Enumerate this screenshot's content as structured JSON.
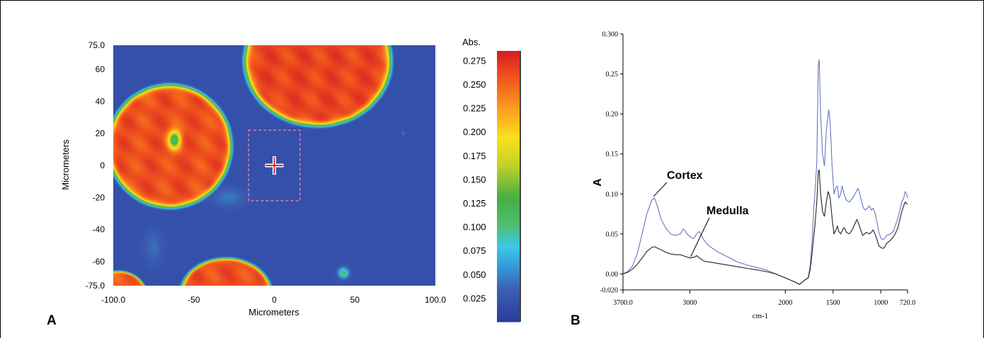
{
  "panels": {
    "a": {
      "letter": "A"
    },
    "b": {
      "letter": "B"
    }
  },
  "chart_data": [
    {
      "type": "heatmap",
      "panel": "A",
      "xlabel": "Micrometers",
      "ylabel": "Micrometers",
      "xlim": [
        -100,
        100
      ],
      "ylim": [
        -75,
        75
      ],
      "x_tick_labels": [
        "-100.0",
        "-50",
        "0",
        "50",
        "100.0"
      ],
      "x_tick_values": [
        -100,
        -50,
        0,
        50,
        100
      ],
      "y_tick_labels": [
        "75.0",
        "60",
        "40",
        "20",
        "0",
        "-20",
        "-40",
        "-60",
        "-75.0"
      ],
      "y_tick_values": [
        75,
        60,
        40,
        20,
        0,
        -20,
        -40,
        -60,
        -75
      ],
      "colorbar": {
        "title": "Abs.",
        "range": [
          0.0,
          0.285
        ],
        "tick_labels": [
          "0.275",
          "0.250",
          "0.225",
          "0.200",
          "0.175",
          "0.150",
          "0.125",
          "0.100",
          "0.075",
          "0.050",
          "0.025"
        ],
        "tick_values": [
          0.275,
          0.25,
          0.225,
          0.2,
          0.175,
          0.15,
          0.125,
          0.1,
          0.075,
          0.05,
          0.025
        ]
      },
      "background_value": 0.02,
      "regions": [
        {
          "shape": "fiber",
          "center": [
            -65,
            12
          ],
          "radius": [
            38,
            38
          ],
          "peak": 0.26
        },
        {
          "shape": "fiber",
          "center": [
            27,
            65
          ],
          "radius": [
            45,
            40
          ],
          "peak": 0.265
        },
        {
          "shape": "fiber",
          "center": [
            -30,
            -80
          ],
          "radius": [
            28,
            22
          ],
          "peak": 0.26
        },
        {
          "shape": "fiber",
          "center": [
            -97,
            -82
          ],
          "radius": [
            18,
            16
          ],
          "peak": 0.255
        },
        {
          "shape": "medulla",
          "center": [
            -62,
            16
          ],
          "radius": [
            4,
            6
          ],
          "value": 0.1
        },
        {
          "shape": "spot",
          "center": [
            43,
            -67
          ],
          "radius": [
            4,
            4
          ],
          "value": 0.11
        },
        {
          "shape": "spot",
          "center": [
            80,
            20
          ],
          "radius": [
            1.5,
            1.5
          ],
          "value": 0.045
        },
        {
          "shape": "haze",
          "center": [
            -28,
            -20
          ],
          "radius": [
            12,
            7
          ],
          "value": 0.045
        },
        {
          "shape": "haze",
          "center": [
            -75,
            -51
          ],
          "radius": [
            7,
            13
          ],
          "value": 0.04
        }
      ],
      "selection_box": {
        "x": [
          -16,
          16
        ],
        "y": [
          -22,
          22
        ]
      },
      "crosshair": [
        0,
        0
      ],
      "colors": {
        "background": "#3c5fb4",
        "box": "#e37aa1",
        "cross_red": "#d5283c",
        "cross_white": "#ffffff"
      }
    },
    {
      "type": "line",
      "panel": "B",
      "xlabel": "cm-1",
      "ylabel": "A",
      "xlim": [
        3700,
        720
      ],
      "ylim": [
        -0.02,
        0.3
      ],
      "x_tick_labels": [
        "3700.0",
        "3000",
        "2000",
        "1500",
        "1000",
        "720.0"
      ],
      "x_tick_values": [
        3700,
        3000,
        2000,
        1500,
        1000,
        720
      ],
      "y_tick_labels": [
        "0.300",
        "0.25",
        "0.20",
        "0.15",
        "0.10",
        "0.05",
        "0.00",
        "-0.020"
      ],
      "y_tick_values": [
        0.3,
        0.25,
        0.2,
        0.15,
        0.1,
        0.05,
        0.0,
        -0.02
      ],
      "series": [
        {
          "name": "Cortex",
          "color": "#6675c5",
          "points": [
            [
              3700,
              0.0
            ],
            [
              3650,
              0.003
            ],
            [
              3600,
              0.01
            ],
            [
              3550,
              0.025
            ],
            [
              3500,
              0.05
            ],
            [
              3450,
              0.075
            ],
            [
              3400,
              0.092
            ],
            [
              3370,
              0.095
            ],
            [
              3340,
              0.085
            ],
            [
              3300,
              0.068
            ],
            [
              3250,
              0.057
            ],
            [
              3200,
              0.05
            ],
            [
              3150,
              0.048
            ],
            [
              3100,
              0.05
            ],
            [
              3070,
              0.056
            ],
            [
              3050,
              0.054
            ],
            [
              3030,
              0.05
            ],
            [
              3000,
              0.047
            ],
            [
              2980,
              0.045
            ],
            [
              2960,
              0.044
            ],
            [
              2930,
              0.05
            ],
            [
              2900,
              0.053
            ],
            [
              2870,
              0.046
            ],
            [
              2850,
              0.042
            ],
            [
              2800,
              0.035
            ],
            [
              2700,
              0.027
            ],
            [
              2600,
              0.021
            ],
            [
              2500,
              0.015
            ],
            [
              2400,
              0.011
            ],
            [
              2300,
              0.008
            ],
            [
              2200,
              0.005
            ],
            [
              2100,
              0.0
            ],
            [
              2000,
              -0.005
            ],
            [
              1900,
              -0.01
            ],
            [
              1850,
              -0.013
            ],
            [
              1800,
              -0.008
            ],
            [
              1760,
              -0.005
            ],
            [
              1740,
              0.01
            ],
            [
              1720,
              0.04
            ],
            [
              1700,
              0.085
            ],
            [
              1690,
              0.1
            ],
            [
              1670,
              0.14
            ],
            [
              1655,
              0.26
            ],
            [
              1645,
              0.268
            ],
            [
              1630,
              0.2
            ],
            [
              1610,
              0.15
            ],
            [
              1590,
              0.135
            ],
            [
              1570,
              0.18
            ],
            [
              1545,
              0.205
            ],
            [
              1530,
              0.19
            ],
            [
              1510,
              0.135
            ],
            [
              1490,
              0.1
            ],
            [
              1470,
              0.108
            ],
            [
              1455,
              0.11
            ],
            [
              1440,
              0.095
            ],
            [
              1420,
              0.1
            ],
            [
              1405,
              0.11
            ],
            [
              1385,
              0.1
            ],
            [
              1360,
              0.092
            ],
            [
              1330,
              0.09
            ],
            [
              1300,
              0.094
            ],
            [
              1270,
              0.1
            ],
            [
              1240,
              0.107
            ],
            [
              1220,
              0.1
            ],
            [
              1200,
              0.09
            ],
            [
              1180,
              0.082
            ],
            [
              1160,
              0.08
            ],
            [
              1140,
              0.082
            ],
            [
              1120,
              0.085
            ],
            [
              1100,
              0.08
            ],
            [
              1080,
              0.082
            ],
            [
              1060,
              0.076
            ],
            [
              1040,
              0.065
            ],
            [
              1020,
              0.052
            ],
            [
              1000,
              0.045
            ],
            [
              980,
              0.043
            ],
            [
              960,
              0.044
            ],
            [
              940,
              0.048
            ],
            [
              900,
              0.05
            ],
            [
              870,
              0.053
            ],
            [
              850,
              0.06
            ],
            [
              820,
              0.07
            ],
            [
              800,
              0.08
            ],
            [
              780,
              0.09
            ],
            [
              760,
              0.095
            ],
            [
              745,
              0.103
            ],
            [
              730,
              0.1
            ],
            [
              720,
              0.095
            ]
          ]
        },
        {
          "name": "Medulla",
          "color": "#222222",
          "points": [
            [
              3700,
              0.0
            ],
            [
              3650,
              0.002
            ],
            [
              3600,
              0.006
            ],
            [
              3550,
              0.012
            ],
            [
              3500,
              0.02
            ],
            [
              3450,
              0.028
            ],
            [
              3400,
              0.033
            ],
            [
              3370,
              0.034
            ],
            [
              3300,
              0.03
            ],
            [
              3250,
              0.027
            ],
            [
              3200,
              0.025
            ],
            [
              3150,
              0.024
            ],
            [
              3100,
              0.024
            ],
            [
              3050,
              0.022
            ],
            [
              3000,
              0.02
            ],
            [
              2950,
              0.021
            ],
            [
              2930,
              0.023
            ],
            [
              2900,
              0.02
            ],
            [
              2850,
              0.016
            ],
            [
              2800,
              0.015
            ],
            [
              2700,
              0.013
            ],
            [
              2600,
              0.011
            ],
            [
              2500,
              0.009
            ],
            [
              2400,
              0.007
            ],
            [
              2300,
              0.005
            ],
            [
              2200,
              0.003
            ],
            [
              2100,
              0.0
            ],
            [
              2000,
              -0.005
            ],
            [
              1900,
              -0.01
            ],
            [
              1850,
              -0.013
            ],
            [
              1800,
              -0.008
            ],
            [
              1760,
              -0.005
            ],
            [
              1740,
              0.005
            ],
            [
              1720,
              0.025
            ],
            [
              1700,
              0.05
            ],
            [
              1690,
              0.06
            ],
            [
              1670,
              0.09
            ],
            [
              1655,
              0.128
            ],
            [
              1645,
              0.13
            ],
            [
              1630,
              0.1
            ],
            [
              1610,
              0.078
            ],
            [
              1590,
              0.072
            ],
            [
              1570,
              0.09
            ],
            [
              1550,
              0.103
            ],
            [
              1530,
              0.095
            ],
            [
              1510,
              0.07
            ],
            [
              1490,
              0.05
            ],
            [
              1470,
              0.055
            ],
            [
              1455,
              0.06
            ],
            [
              1440,
              0.053
            ],
            [
              1420,
              0.05
            ],
            [
              1400,
              0.055
            ],
            [
              1385,
              0.058
            ],
            [
              1360,
              0.052
            ],
            [
              1330,
              0.05
            ],
            [
              1300,
              0.055
            ],
            [
              1270,
              0.063
            ],
            [
              1250,
              0.068
            ],
            [
              1230,
              0.062
            ],
            [
              1210,
              0.055
            ],
            [
              1190,
              0.048
            ],
            [
              1170,
              0.05
            ],
            [
              1150,
              0.052
            ],
            [
              1120,
              0.05
            ],
            [
              1100,
              0.052
            ],
            [
              1080,
              0.055
            ],
            [
              1060,
              0.05
            ],
            [
              1040,
              0.043
            ],
            [
              1020,
              0.035
            ],
            [
              1000,
              0.033
            ],
            [
              980,
              0.032
            ],
            [
              960,
              0.033
            ],
            [
              940,
              0.038
            ],
            [
              900,
              0.042
            ],
            [
              870,
              0.046
            ],
            [
              850,
              0.05
            ],
            [
              820,
              0.058
            ],
            [
              800,
              0.068
            ],
            [
              780,
              0.078
            ],
            [
              760,
              0.085
            ],
            [
              745,
              0.09
            ],
            [
              730,
              0.088
            ],
            [
              720,
              0.087
            ]
          ]
        }
      ],
      "annotations": [
        {
          "text": "Cortex",
          "point": [
            3380,
            0.095
          ]
        },
        {
          "text": "Medulla",
          "point": [
            2990,
            0.02
          ]
        }
      ]
    }
  ]
}
